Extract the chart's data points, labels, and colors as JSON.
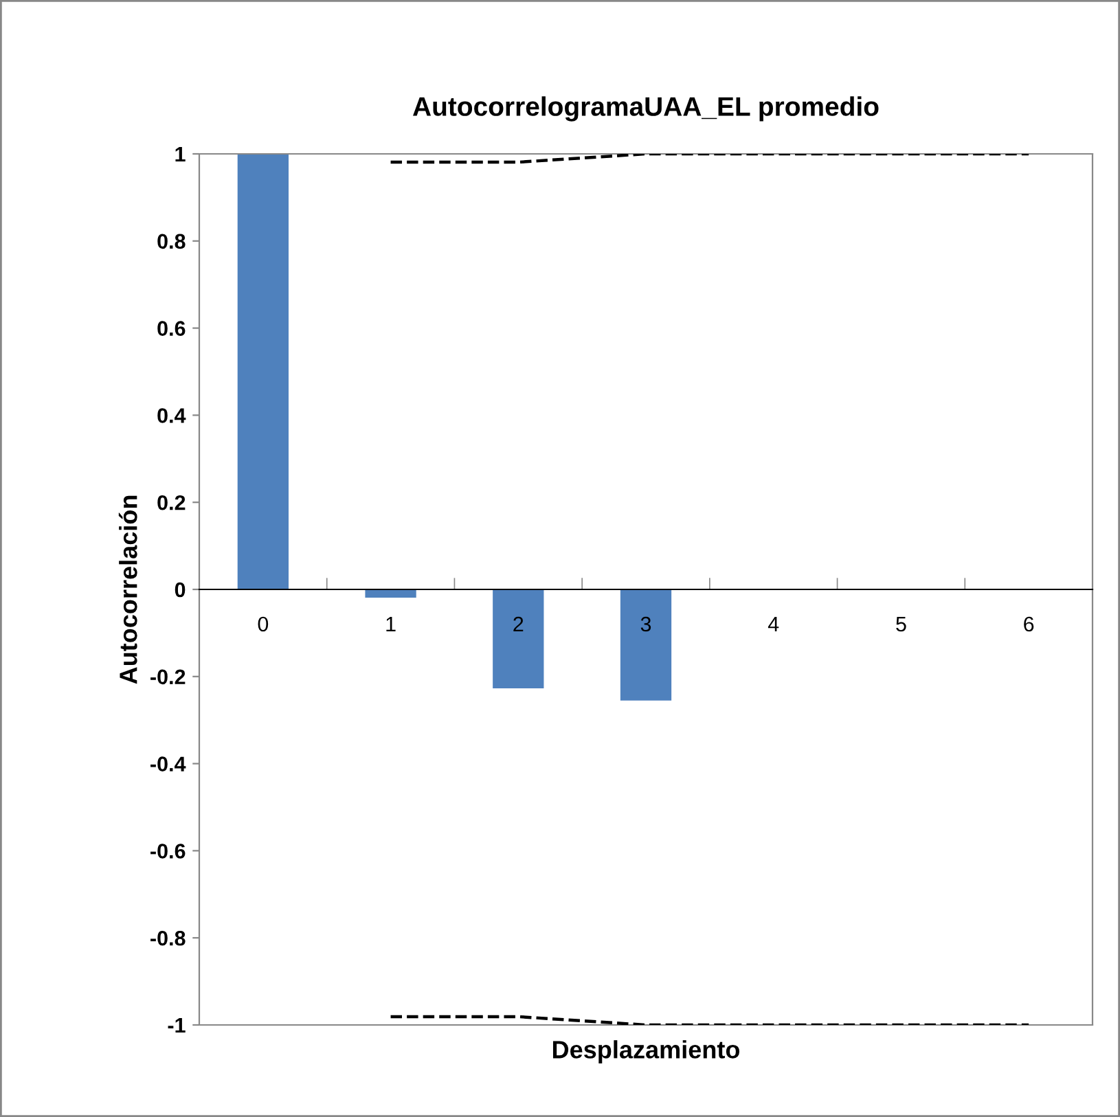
{
  "chart_data": {
    "type": "bar",
    "title": "AutocorrelogramaUAA_EL promedio",
    "xlabel": "Desplazamiento",
    "ylabel": "Autocorrelación",
    "categories": [
      "0",
      "1",
      "2",
      "3",
      "4",
      "5",
      "6"
    ],
    "series": [
      {
        "color": "#4f81bd",
        "values": [
          1,
          -0.019,
          -0.227,
          -0.255,
          0,
          0,
          0
        ]
      },
      {
        "type": "line",
        "color": "#000000",
        "line_style": "dashed",
        "values": [
          null,
          0.981,
          0.981,
          1,
          1,
          1,
          1
        ]
      },
      {
        "type": "line",
        "color": "#000000",
        "line_style": "dashed",
        "values": [
          null,
          -0.981,
          -0.981,
          -1,
          -1,
          -1,
          -1
        ]
      }
    ],
    "ylim": [
      -1,
      1
    ],
    "yticks": [
      -1,
      -0.8,
      -0.6,
      -0.4,
      -0.2,
      0,
      0.2,
      0.4,
      0.6,
      0.8,
      1
    ],
    "grid": false,
    "legend": false
  }
}
